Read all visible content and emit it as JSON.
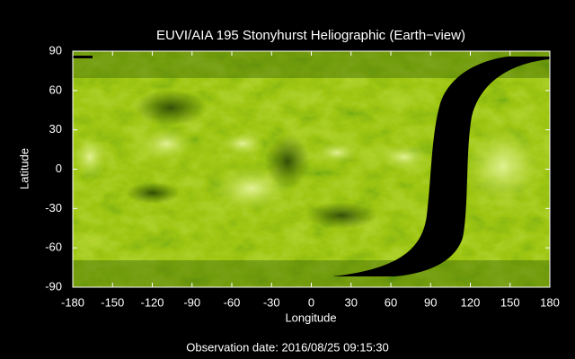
{
  "chart_data": {
    "type": "image",
    "title": "EUVI/AIA 195 Stonyhurst Heliographic (Earth−view)",
    "xlabel": "Longitude",
    "ylabel": "Latitude",
    "xlim": [
      -180,
      180
    ],
    "ylim": [
      -90,
      90
    ],
    "xticks": [
      -180,
      -150,
      -120,
      -90,
      -60,
      -30,
      0,
      30,
      60,
      90,
      120,
      150,
      180
    ],
    "yticks": [
      -90,
      -60,
      -30,
      0,
      30,
      60,
      90
    ],
    "annotation": "Observation date: 2016/08/25 09:15:30"
  }
}
